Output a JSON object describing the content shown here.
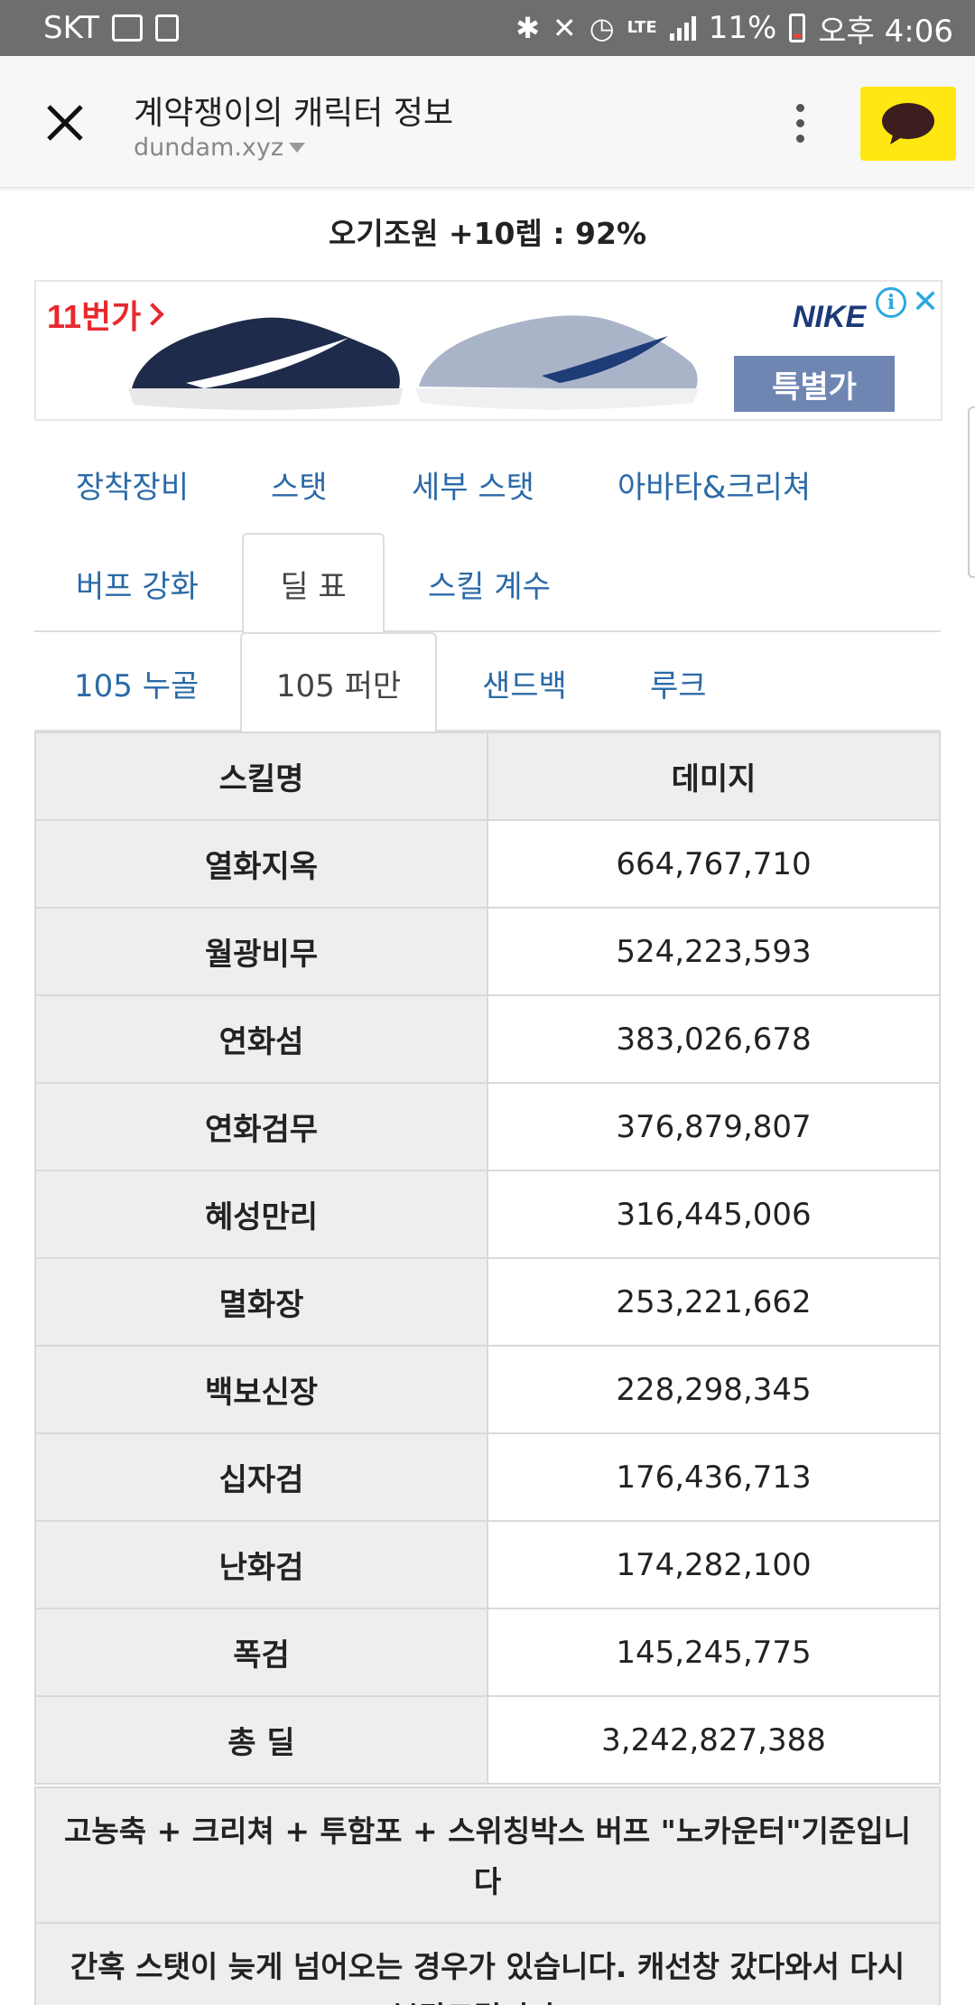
{
  "status_bar": {
    "carrier": "SKT",
    "network": "LTE",
    "battery": "11%",
    "time": "오후 4:06"
  },
  "app_bar": {
    "title": "계약쟁이의 캐릭터 정보",
    "domain": "dundam.xyz"
  },
  "level_line": "오기조원 +10렙 : 92%",
  "ad": {
    "tag": "11번가",
    "brand": "NIKE",
    "label": "특별가",
    "info_glyph": "i",
    "close_glyph": "✕"
  },
  "tabs_row1": [
    "장착장비",
    "스탯",
    "세부 스탯",
    "아바타&크리쳐"
  ],
  "tabs_row2": {
    "buff": "버프 강화",
    "active": "딜 표",
    "skill_coef": "스킬 계수"
  },
  "tabs_row3": {
    "first": "105 누골",
    "active": "105 퍼만",
    "sandbag": "샌드백",
    "rook": "루크"
  },
  "table": {
    "headers": [
      "스킬명",
      "데미지"
    ],
    "rows": [
      {
        "skill": "열화지옥",
        "damage": "664,767,710"
      },
      {
        "skill": "월광비무",
        "damage": "524,223,593"
      },
      {
        "skill": "연화섬",
        "damage": "383,026,678"
      },
      {
        "skill": "연화검무",
        "damage": "376,879,807"
      },
      {
        "skill": "혜성만리",
        "damage": "316,445,006"
      },
      {
        "skill": "멸화장",
        "damage": "253,221,662"
      },
      {
        "skill": "백보신장",
        "damage": "228,298,345"
      },
      {
        "skill": "십자검",
        "damage": "176,436,713"
      },
      {
        "skill": "난화검",
        "damage": "174,282,100"
      },
      {
        "skill": "폭검",
        "damage": "145,245,775"
      },
      {
        "skill": "총 딜",
        "damage": "3,242,827,388"
      }
    ]
  },
  "notes": [
    "고농축 + 크리쳐 + 투함포 + 스위칭박스 버프 \"노카운터\"기준입니다",
    "간혹 스탯이 늦게 넘어오는 경우가 있습니다. 캐선창 갔다와서 다시 부탁드립니다!!"
  ]
}
